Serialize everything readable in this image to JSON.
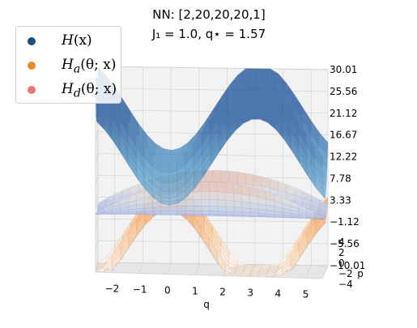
{
  "chart_data": {
    "type": "surface3d",
    "title_line1": "NN: [2,20,20,20,1]",
    "title_line2": "J₁ = 1.0, q⋆ = 1.57",
    "xlabel": "q",
    "ylabel": "p",
    "x_ticks": [
      "−2",
      "−1",
      "0",
      "1",
      "2",
      "3",
      "4",
      "5"
    ],
    "y_ticks": [
      "4",
      "2",
      "0",
      "−2",
      "−4"
    ],
    "z_ticks": [
      "30.01",
      "25.56",
      "21.12",
      "16.67",
      "12.22",
      "7.78",
      "3.33",
      "−1.12",
      "−5.56",
      "−10.01"
    ],
    "zlim": [
      -10.01,
      30.01
    ],
    "series": [
      {
        "name": "H(x)",
        "legend_symbol": "H",
        "legend_args": "(x)",
        "color": "#1f4e79",
        "colormap": "Blues",
        "surface": "H = p²/2 + J₁ (1 − cos q)"
      },
      {
        "name": "H_a(θ;x)",
        "legend_symbol": "H",
        "legend_sub": "a",
        "legend_args": "(θ; x)",
        "color": "#e8892c",
        "colormap": "Oranges",
        "surface": "H_a = p²/2 − J₁ (1 − cos q)"
      },
      {
        "name": "H_d(θ;x)",
        "legend_symbol": "H",
        "legend_sub": "d",
        "legend_args": "(θ; x)",
        "color": "#e8787a",
        "colormap": "coolwarm",
        "surface": "H_d = (p²/2) · (1 − 0.05 (q − q⋆)²)"
      }
    ],
    "grid": true,
    "legend_position": "upper-left"
  }
}
